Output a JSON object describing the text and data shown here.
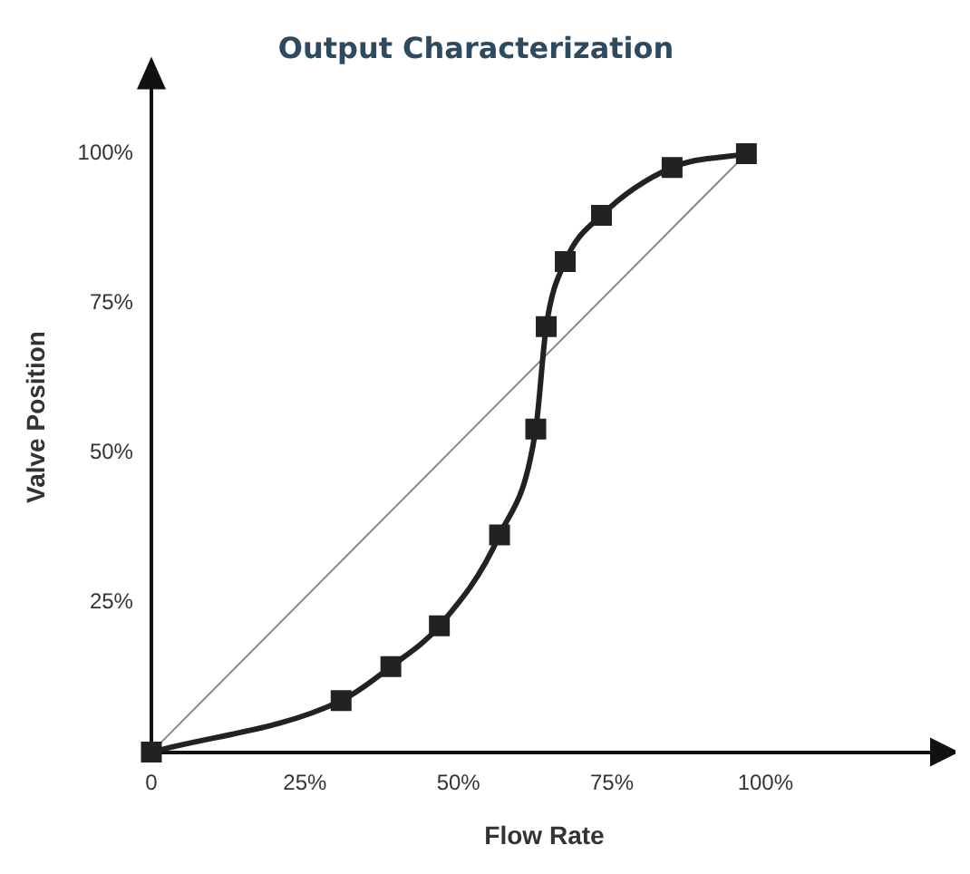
{
  "chart_data": {
    "type": "line",
    "title": "Output Characterization",
    "xlabel": "Flow Rate",
    "ylabel": "Valve Position",
    "xlim": [
      0,
      128
    ],
    "ylim": [
      0,
      112
    ],
    "xticks": [
      {
        "value": 0,
        "label": "0"
      },
      {
        "value": 25,
        "label": "25%"
      },
      {
        "value": 50,
        "label": "50%"
      },
      {
        "value": 75,
        "label": "75%"
      },
      {
        "value": 100,
        "label": "100%"
      }
    ],
    "yticks": [
      {
        "value": 25,
        "label": "25%"
      },
      {
        "value": 50,
        "label": "50%"
      },
      {
        "value": 75,
        "label": "75%"
      },
      {
        "value": 100,
        "label": "100%"
      }
    ],
    "grid": false,
    "legend": false,
    "series": [
      {
        "color": "#222222",
        "marker": "square",
        "line_style": "solid",
        "x": [
          0,
          30.9,
          39,
          46.9,
          56.7,
          62.6,
          64.3,
          67.4,
          73.3,
          84.8,
          96.9
        ],
        "values": [
          0,
          8.6,
          14.3,
          21.1,
          36.3,
          54,
          71.1,
          82,
          89.7,
          97.7,
          100
        ]
      },
      {
        "color": "#888888",
        "marker": "none",
        "line_style": "solid",
        "x": [
          0,
          96.9
        ],
        "values": [
          0,
          100
        ]
      }
    ]
  }
}
